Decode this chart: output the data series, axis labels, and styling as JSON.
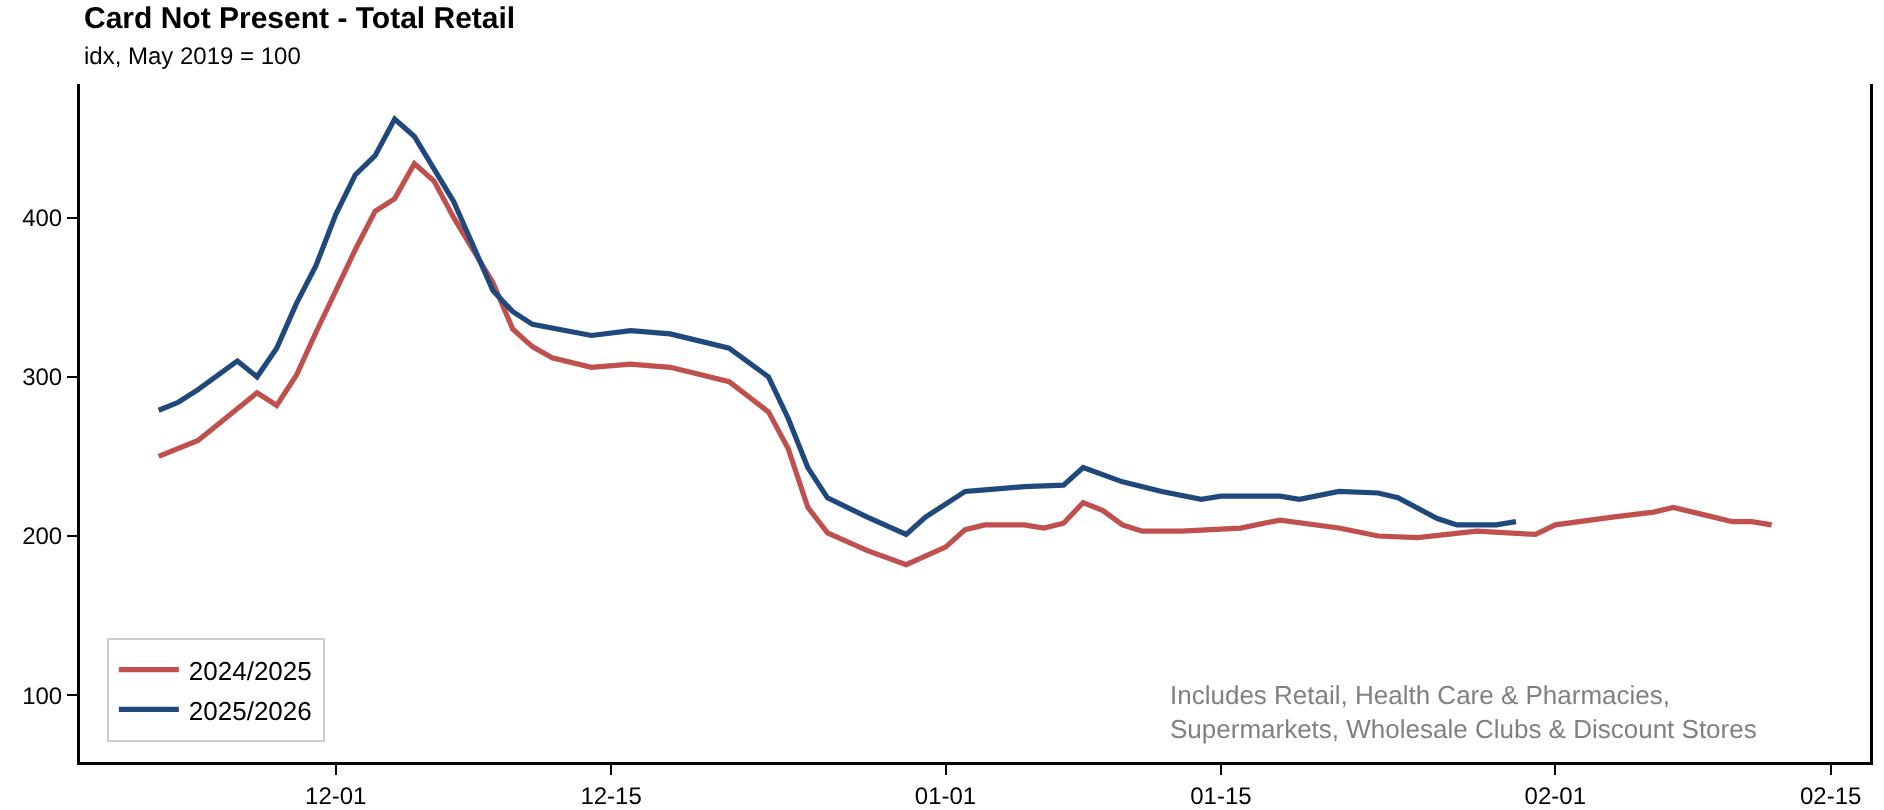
{
  "chart_data": {
    "type": "line",
    "title": "Card Not Present - Total Retail",
    "subtitle": "idx, May 2019 = 100",
    "annotations": [
      "Includes Retail, Health Care & Pharmacies,\nSupermarkets, Wholesale Clubs & Discount Stores"
    ],
    "xlim": [
      "2024-11-18",
      "2025-02-17"
    ],
    "xticks": [
      {
        "value": "2024-12-01",
        "label": "12-01"
      },
      {
        "value": "2024-12-15",
        "label": "12-15"
      },
      {
        "value": "2025-01-01",
        "label": "01-01"
      },
      {
        "value": "2025-01-15",
        "label": "01-15"
      },
      {
        "value": "2025-02-01",
        "label": "02-01"
      },
      {
        "value": "2025-02-15",
        "label": "02-15"
      }
    ],
    "ylim": [
      58,
      484
    ],
    "yticks": [
      100,
      200,
      300,
      400
    ],
    "grid": false,
    "legend": "bottom left",
    "line_style": "solid",
    "marker": "none",
    "series": [
      {
        "name": "2024/2025",
        "color": "#c0504d",
        "x": [
          "2024-11-22",
          "2024-11-24",
          "2024-11-26",
          "2024-11-27",
          "2024-11-28",
          "2024-11-29",
          "2024-11-30",
          "2024-12-02",
          "2024-12-03",
          "2024-12-04",
          "2024-12-05",
          "2024-12-06",
          "2024-12-07",
          "2024-12-09",
          "2024-12-10",
          "2024-12-11",
          "2024-12-12",
          "2024-12-14",
          "2024-12-16",
          "2024-12-18",
          "2024-12-19",
          "2024-12-21",
          "2024-12-23",
          "2024-12-24",
          "2024-12-25",
          "2024-12-26",
          "2024-12-28",
          "2024-12-30",
          "2025-01-01",
          "2025-01-02",
          "2025-01-03",
          "2025-01-05",
          "2025-01-06",
          "2025-01-07",
          "2025-01-08",
          "2025-01-09",
          "2025-01-10",
          "2025-01-11",
          "2025-01-13",
          "2025-01-16",
          "2025-01-18",
          "2025-01-21",
          "2025-01-23",
          "2025-01-25",
          "2025-01-28",
          "2025-01-31",
          "2025-02-01",
          "2025-02-04",
          "2025-02-06",
          "2025-02-07",
          "2025-02-09",
          "2025-02-10",
          "2025-02-11",
          "2025-02-12"
        ],
        "values": [
          250,
          260,
          280,
          290,
          282,
          301,
          328,
          380,
          404,
          412,
          434,
          423,
          400,
          359,
          330,
          319,
          312,
          306,
          308,
          306,
          303,
          297,
          278,
          255,
          218,
          202,
          191,
          182,
          193,
          204,
          207,
          207,
          205,
          208,
          221,
          216,
          207,
          203,
          203,
          205,
          210,
          205,
          200,
          199,
          203,
          201,
          207,
          212,
          215,
          218,
          212,
          209,
          209,
          207
        ]
      },
      {
        "name": "2025/2026",
        "color": "#1f497d",
        "x": [
          "2024-11-22",
          "2024-11-23",
          "2024-11-24",
          "2024-11-26",
          "2024-11-27",
          "2024-11-28",
          "2024-11-29",
          "2024-11-30",
          "2024-12-01",
          "2024-12-02",
          "2024-12-03",
          "2024-12-04",
          "2024-12-05",
          "2024-12-07",
          "2024-12-09",
          "2024-12-10",
          "2024-12-11",
          "2024-12-14",
          "2024-12-16",
          "2024-12-18",
          "2024-12-19",
          "2024-12-21",
          "2024-12-23",
          "2024-12-24",
          "2024-12-25",
          "2024-12-26",
          "2024-12-28",
          "2024-12-30",
          "2024-12-31",
          "2025-01-02",
          "2025-01-03",
          "2025-01-05",
          "2025-01-07",
          "2025-01-08",
          "2025-01-10",
          "2025-01-12",
          "2025-01-14",
          "2025-01-15",
          "2025-01-18",
          "2025-01-19",
          "2025-01-21",
          "2025-01-23",
          "2025-01-24",
          "2025-01-26",
          "2025-01-27",
          "2025-01-29",
          "2025-01-30"
        ],
        "values": [
          279,
          284,
          292,
          310,
          300,
          318,
          346,
          370,
          402,
          427,
          439,
          462,
          451,
          410,
          354,
          341,
          333,
          326,
          329,
          327,
          324,
          318,
          300,
          274,
          243,
          224,
          212,
          201,
          212,
          228,
          229,
          231,
          232,
          243,
          234,
          228,
          223,
          225,
          225,
          223,
          228,
          227,
          224,
          211,
          207,
          207,
          209
        ]
      }
    ]
  }
}
